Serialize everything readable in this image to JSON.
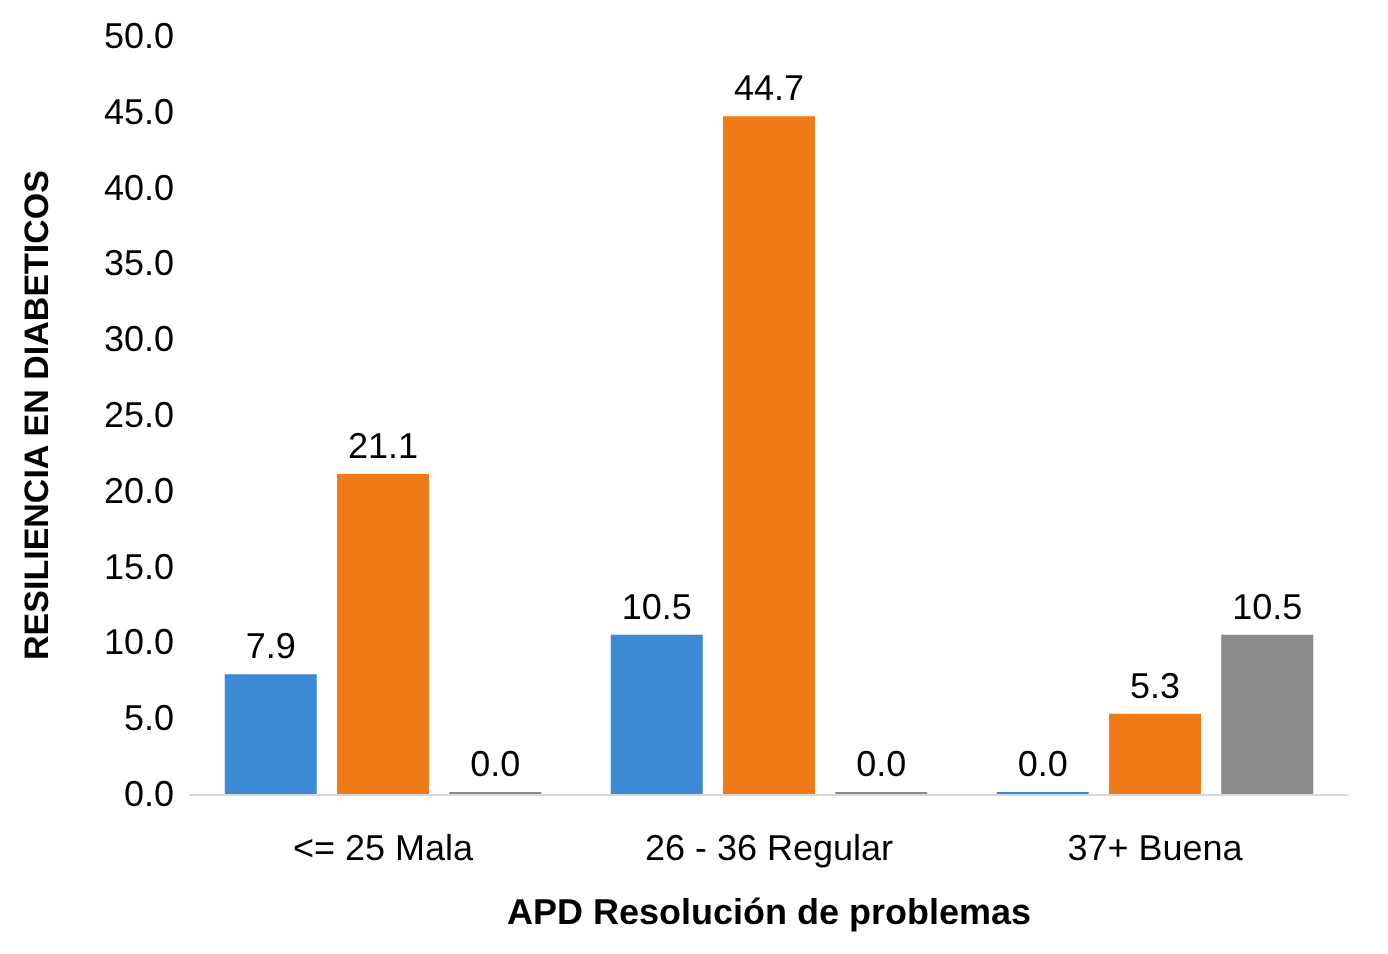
{
  "chart_data": {
    "type": "bar",
    "xlabel": "APD Resolución de problemas",
    "ylabel": "RESILIENCIA EN DIABETICOS",
    "categories": [
      "<= 25 Mala",
      "26 - 36 Regular",
      "37+ Buena"
    ],
    "series": [
      {
        "color": "#3d8ad4",
        "values": [
          7.9,
          10.5,
          0
        ],
        "value_labels": [
          "7.9",
          "10.5",
          "0.0"
        ]
      },
      {
        "color": "#f07a17",
        "values": [
          21.1,
          44.7,
          5.3
        ],
        "value_labels": [
          "21.1",
          "44.7",
          "5.3"
        ]
      },
      {
        "color": "#8a8a8a",
        "values": [
          0,
          0,
          10.5
        ],
        "value_labels": [
          "0.0",
          "0.0",
          "10.5"
        ]
      }
    ],
    "ylim": [
      0,
      50
    ],
    "yticks": [
      {
        "value": 0,
        "label": "0.0"
      },
      {
        "value": 5,
        "label": "5.0"
      },
      {
        "value": 10,
        "label": "10.0"
      },
      {
        "value": 15,
        "label": "15.0"
      },
      {
        "value": 20,
        "label": "20.0"
      },
      {
        "value": 25,
        "label": "25.0"
      },
      {
        "value": 30,
        "label": "30.0"
      },
      {
        "value": 35,
        "label": "35.0"
      },
      {
        "value": 40,
        "label": "40.0"
      },
      {
        "value": 45,
        "label": "45.0"
      },
      {
        "value": 50,
        "label": "50.0"
      }
    ],
    "grid": false
  }
}
